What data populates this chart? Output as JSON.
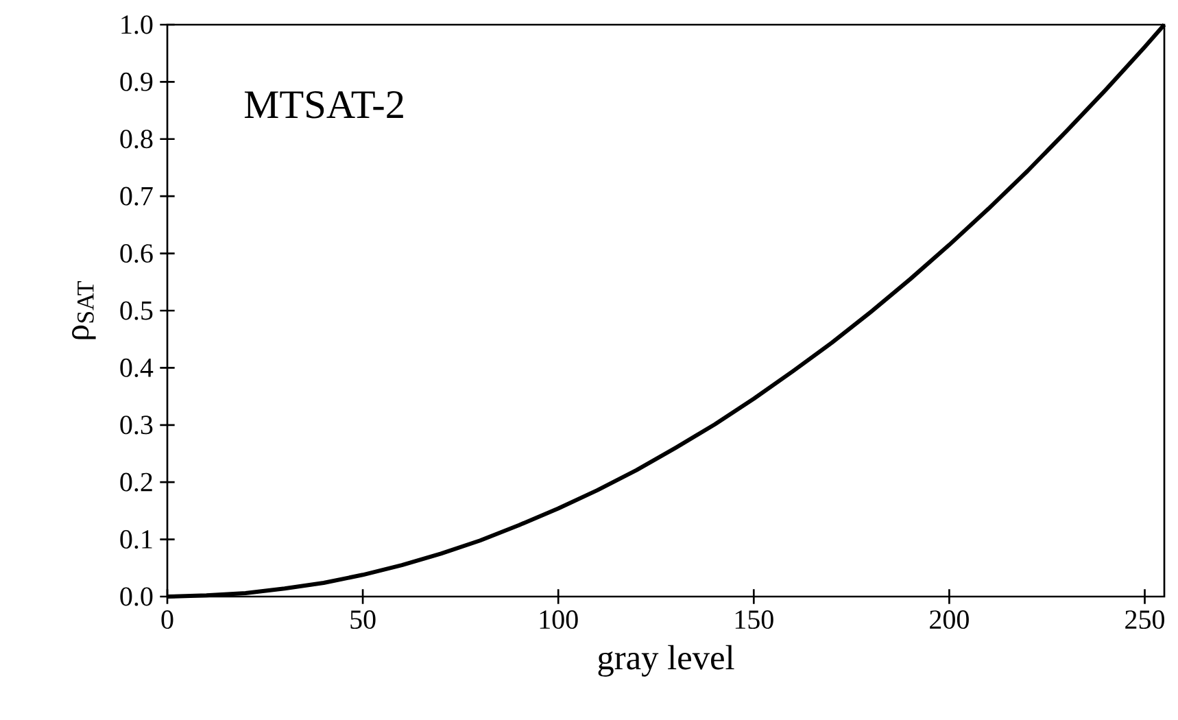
{
  "chart_data": {
    "type": "line",
    "xlabel": "gray level",
    "ylabel": "ρ$_{SAT}$",
    "annotations": [
      "MTSAT-2"
    ],
    "xlim": [
      0,
      255
    ],
    "xticks": [
      0,
      50,
      100,
      150,
      200,
      250
    ],
    "ylim": [
      0,
      1
    ],
    "yticks": [
      {
        "value": 0,
        "label": "0.0"
      },
      {
        "value": 0.1,
        "label": "0.1"
      },
      {
        "value": 0.2,
        "label": "0.2"
      },
      {
        "value": 0.3,
        "label": "0.3"
      },
      {
        "value": 0.4,
        "label": "0.4"
      },
      {
        "value": 0.5,
        "label": "0.5"
      },
      {
        "value": 0.6,
        "label": "0.6"
      },
      {
        "value": 0.7,
        "label": "0.7"
      },
      {
        "value": 0.8,
        "label": "0.8"
      },
      {
        "value": 0.9,
        "label": "0.9"
      },
      {
        "value": 1,
        "label": "1.0"
      }
    ],
    "x": [
      0,
      10,
      20,
      30,
      40,
      50,
      60,
      70,
      80,
      90,
      100,
      110,
      120,
      130,
      140,
      150,
      160,
      170,
      180,
      190,
      200,
      210,
      220,
      230,
      240,
      250,
      255
    ],
    "series": [
      {
        "color": "#000000",
        "values": [
          0,
          0.002,
          0.006,
          0.014,
          0.024,
          0.038,
          0.055,
          0.075,
          0.098,
          0.125,
          0.154,
          0.186,
          0.221,
          0.26,
          0.301,
          0.346,
          0.394,
          0.444,
          0.498,
          0.555,
          0.615,
          0.678,
          0.744,
          0.814,
          0.886,
          0.961,
          1.0
        ]
      }
    ],
    "grid": false,
    "marker": "none",
    "line_style": "solid"
  }
}
